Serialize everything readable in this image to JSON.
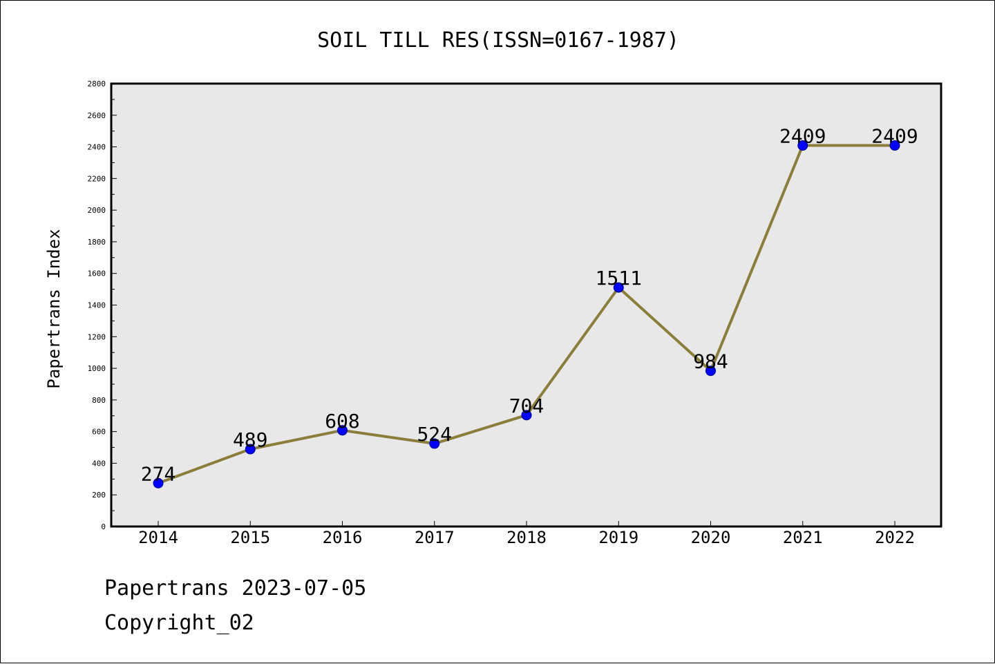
{
  "chart_data": {
    "type": "line",
    "title": "SOIL TILL RES(ISSN=0167-1987)",
    "xlabel": "",
    "ylabel": "Papertrans Index",
    "categories": [
      "2014",
      "2015",
      "2016",
      "2017",
      "2018",
      "2019",
      "2020",
      "2021",
      "2022"
    ],
    "values": [
      274,
      489,
      608,
      524,
      704,
      1511,
      984,
      2409,
      2409
    ],
    "data_labels": [
      "274",
      "489",
      "608",
      "524",
      "704",
      "1511",
      "984",
      "2409",
      "2409"
    ],
    "ylim": [
      0,
      2800
    ],
    "yticks": [
      0,
      200,
      400,
      600,
      800,
      1000,
      1200,
      1400,
      1600,
      1800,
      2000,
      2200,
      2400,
      2600,
      2800
    ],
    "grid": false,
    "legend": "none",
    "colors": {
      "line": "#8b7d3a",
      "marker_fill": "#0000ff",
      "marker_edge": "#00008b",
      "plot_background": "#e8e8e8"
    }
  },
  "footer": {
    "line1": "Papertrans 2023-07-05",
    "line2": "Copyright_02"
  }
}
